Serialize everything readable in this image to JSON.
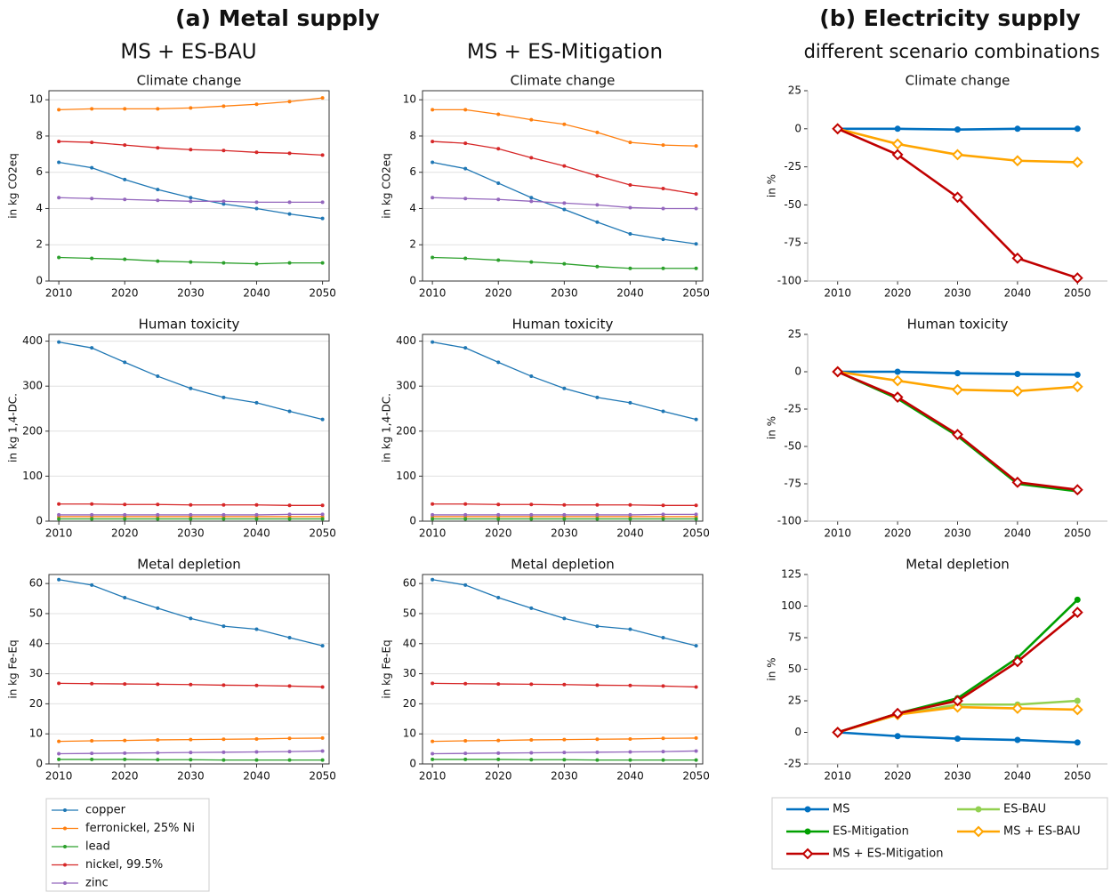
{
  "headings": {
    "a": "(a) Metal supply",
    "b": "(b) Electricity supply",
    "a1": "MS + ES-BAU",
    "a2": "MS + ES-Mitigation",
    "b1": "different scenario combinations"
  },
  "chart_data": [
    {
      "type": "line",
      "title": "Climate change",
      "y_label": "in kg CO2eq",
      "grid": true,
      "x": [
        2010,
        2015,
        2020,
        2025,
        2030,
        2035,
        2040,
        2045,
        2050
      ],
      "xlim": [
        2008.5,
        2051
      ],
      "xticks": [
        2010,
        2020,
        2030,
        2040,
        2050
      ],
      "ylim": [
        0,
        10.5
      ],
      "yticks": [
        0,
        2,
        4,
        6,
        8,
        10
      ],
      "series": [
        {
          "name": "copper",
          "color": "#1f77b4",
          "marker": "dot",
          "values": [
            6.55,
            6.25,
            5.6,
            5.05,
            4.6,
            4.25,
            4.0,
            3.7,
            3.45
          ]
        },
        {
          "name": "ferronickel, 25% Ni",
          "color": "#ff7f0e",
          "marker": "dot",
          "values": [
            9.45,
            9.5,
            9.5,
            9.5,
            9.55,
            9.65,
            9.75,
            9.9,
            10.1
          ]
        },
        {
          "name": "lead",
          "color": "#2ca02c",
          "marker": "dot",
          "values": [
            1.3,
            1.25,
            1.2,
            1.1,
            1.05,
            1.0,
            0.95,
            1.0,
            1.0
          ]
        },
        {
          "name": "nickel, 99.5%",
          "color": "#d62728",
          "marker": "dot",
          "values": [
            7.7,
            7.65,
            7.5,
            7.35,
            7.25,
            7.2,
            7.1,
            7.05,
            6.95
          ]
        },
        {
          "name": "zinc",
          "color": "#9467bd",
          "marker": "dot",
          "values": [
            4.6,
            4.55,
            4.5,
            4.45,
            4.4,
            4.4,
            4.35,
            4.35,
            4.35
          ]
        }
      ]
    },
    {
      "type": "line",
      "title": "Climate change",
      "y_label": "in kg CO2eq",
      "grid": true,
      "x": [
        2010,
        2015,
        2020,
        2025,
        2030,
        2035,
        2040,
        2045,
        2050
      ],
      "xlim": [
        2008.5,
        2051
      ],
      "xticks": [
        2010,
        2020,
        2030,
        2040,
        2050
      ],
      "ylim": [
        0,
        10.5
      ],
      "yticks": [
        0,
        2,
        4,
        6,
        8,
        10
      ],
      "series": [
        {
          "name": "copper",
          "color": "#1f77b4",
          "marker": "dot",
          "values": [
            6.55,
            6.2,
            5.4,
            4.6,
            3.95,
            3.25,
            2.6,
            2.3,
            2.05
          ]
        },
        {
          "name": "ferronickel, 25% Ni",
          "color": "#ff7f0e",
          "marker": "dot",
          "values": [
            9.45,
            9.45,
            9.2,
            8.9,
            8.65,
            8.2,
            7.65,
            7.5,
            7.45
          ]
        },
        {
          "name": "lead",
          "color": "#2ca02c",
          "marker": "dot",
          "values": [
            1.3,
            1.25,
            1.15,
            1.05,
            0.95,
            0.8,
            0.7,
            0.7,
            0.7
          ]
        },
        {
          "name": "nickel, 99.5%",
          "color": "#d62728",
          "marker": "dot",
          "values": [
            7.7,
            7.6,
            7.3,
            6.8,
            6.35,
            5.8,
            5.3,
            5.1,
            4.8
          ]
        },
        {
          "name": "zinc",
          "color": "#9467bd",
          "marker": "dot",
          "values": [
            4.6,
            4.55,
            4.5,
            4.4,
            4.3,
            4.2,
            4.05,
            4.0,
            4.0
          ]
        }
      ]
    },
    {
      "type": "line",
      "title": "Climate change",
      "y_label": "in %",
      "grid": false,
      "x": [
        2010,
        2020,
        2030,
        2040,
        2050
      ],
      "xlim": [
        2005,
        2055
      ],
      "xticks": [
        2010,
        2020,
        2030,
        2040,
        2050
      ],
      "ylim": [
        -100,
        25
      ],
      "yticks": [
        -100,
        -75,
        -50,
        -25,
        0,
        25
      ],
      "series": [
        {
          "name": "MS",
          "color": "#0070c0",
          "marker": "circle",
          "values": [
            0,
            0,
            -0.5,
            0,
            0
          ]
        },
        {
          "name": "MS + ES-BAU",
          "color": "#ffa500",
          "marker": "diamond",
          "values": [
            0,
            -10,
            -17,
            -21,
            -22
          ]
        },
        {
          "name": "MS + ES-Mitigation",
          "color": "#c00000",
          "marker": "diamond",
          "values": [
            0,
            -17,
            -45,
            -85,
            -98
          ]
        }
      ]
    },
    {
      "type": "line",
      "title": "Human toxicity",
      "y_label": "in kg 1,4-DC.",
      "grid": true,
      "x": [
        2010,
        2015,
        2020,
        2025,
        2030,
        2035,
        2040,
        2045,
        2050
      ],
      "xlim": [
        2008.5,
        2051
      ],
      "xticks": [
        2010,
        2020,
        2030,
        2040,
        2050
      ],
      "ylim": [
        0,
        415
      ],
      "yticks": [
        0,
        100,
        200,
        300,
        400
      ],
      "series": [
        {
          "name": "copper",
          "color": "#1f77b4",
          "marker": "dot",
          "values": [
            398,
            385,
            353,
            322,
            295,
            275,
            263,
            244,
            226
          ]
        },
        {
          "name": "ferronickel, 25% Ni",
          "color": "#ff7f0e",
          "marker": "dot",
          "values": [
            10,
            10,
            10,
            10,
            10,
            10,
            10,
            10,
            10
          ]
        },
        {
          "name": "lead",
          "color": "#2ca02c",
          "marker": "dot",
          "values": [
            5,
            5,
            5,
            5,
            5,
            5,
            5,
            5,
            5
          ]
        },
        {
          "name": "nickel, 99.5%",
          "color": "#d62728",
          "marker": "dot",
          "values": [
            38,
            38,
            37,
            37,
            36,
            36,
            36,
            35,
            35
          ]
        },
        {
          "name": "zinc",
          "color": "#9467bd",
          "marker": "dot",
          "values": [
            14,
            14,
            14,
            14,
            14,
            14,
            14,
            15,
            15
          ]
        }
      ]
    },
    {
      "type": "line",
      "title": "Human toxicity",
      "y_label": "in kg 1,4-DC.",
      "grid": true,
      "x": [
        2010,
        2015,
        2020,
        2025,
        2030,
        2035,
        2040,
        2045,
        2050
      ],
      "xlim": [
        2008.5,
        2051
      ],
      "xticks": [
        2010,
        2020,
        2030,
        2040,
        2050
      ],
      "ylim": [
        0,
        415
      ],
      "yticks": [
        0,
        100,
        200,
        300,
        400
      ],
      "series": [
        {
          "name": "copper",
          "color": "#1f77b4",
          "marker": "dot",
          "values": [
            398,
            385,
            353,
            322,
            295,
            275,
            263,
            244,
            226
          ]
        },
        {
          "name": "ferronickel, 25% Ni",
          "color": "#ff7f0e",
          "marker": "dot",
          "values": [
            10,
            10,
            10,
            10,
            10,
            10,
            10,
            10,
            10
          ]
        },
        {
          "name": "lead",
          "color": "#2ca02c",
          "marker": "dot",
          "values": [
            5,
            5,
            5,
            5,
            5,
            5,
            5,
            5,
            5
          ]
        },
        {
          "name": "nickel, 99.5%",
          "color": "#d62728",
          "marker": "dot",
          "values": [
            38,
            38,
            37,
            37,
            36,
            36,
            36,
            35,
            35
          ]
        },
        {
          "name": "zinc",
          "color": "#9467bd",
          "marker": "dot",
          "values": [
            14,
            14,
            14,
            14,
            14,
            14,
            14,
            15,
            15
          ]
        }
      ]
    },
    {
      "type": "line",
      "title": "Human toxicity",
      "y_label": "in %",
      "grid": false,
      "x": [
        2010,
        2020,
        2030,
        2040,
        2050
      ],
      "xlim": [
        2005,
        2055
      ],
      "xticks": [
        2010,
        2020,
        2030,
        2040,
        2050
      ],
      "ylim": [
        -100,
        25
      ],
      "yticks": [
        -100,
        -75,
        -50,
        -25,
        0,
        25
      ],
      "series": [
        {
          "name": "MS",
          "color": "#0070c0",
          "marker": "circle",
          "values": [
            0,
            0,
            -1,
            -1.5,
            -2
          ]
        },
        {
          "name": "MS + ES-BAU",
          "color": "#ffa500",
          "marker": "diamond",
          "values": [
            0,
            -6,
            -12,
            -13,
            -10
          ]
        },
        {
          "name": "ES-Mitigation",
          "color": "#00a000",
          "marker": "circle",
          "values": [
            0,
            -18,
            -43,
            -75,
            -80
          ]
        },
        {
          "name": "MS + ES-Mitigation",
          "color": "#c00000",
          "marker": "diamond",
          "values": [
            0,
            -17,
            -42,
            -74,
            -79
          ]
        }
      ]
    },
    {
      "type": "line",
      "title": "Metal depletion",
      "y_label": "in kg Fe-Eq",
      "grid": true,
      "x": [
        2010,
        2015,
        2020,
        2025,
        2030,
        2035,
        2040,
        2045,
        2050
      ],
      "xlim": [
        2008.5,
        2051
      ],
      "xticks": [
        2010,
        2020,
        2030,
        2040,
        2050
      ],
      "ylim": [
        0,
        63
      ],
      "yticks": [
        0,
        10,
        20,
        30,
        40,
        50,
        60
      ],
      "series": [
        {
          "name": "copper",
          "color": "#1f77b4",
          "marker": "dot",
          "values": [
            61.3,
            59.5,
            55.3,
            51.8,
            48.4,
            45.8,
            44.8,
            42.0,
            39.3
          ]
        },
        {
          "name": "ferronickel, 25% Ni",
          "color": "#ff7f0e",
          "marker": "dot",
          "values": [
            7.5,
            7.7,
            7.8,
            8.0,
            8.1,
            8.2,
            8.3,
            8.5,
            8.6
          ]
        },
        {
          "name": "lead",
          "color": "#2ca02c",
          "marker": "dot",
          "values": [
            1.5,
            1.5,
            1.5,
            1.4,
            1.4,
            1.3,
            1.3,
            1.3,
            1.3
          ]
        },
        {
          "name": "nickel, 99.5%",
          "color": "#d62728",
          "marker": "dot",
          "values": [
            26.8,
            26.7,
            26.6,
            26.5,
            26.4,
            26.2,
            26.1,
            25.9,
            25.6
          ]
        },
        {
          "name": "zinc",
          "color": "#9467bd",
          "marker": "dot",
          "values": [
            3.4,
            3.5,
            3.6,
            3.7,
            3.8,
            3.9,
            4.0,
            4.1,
            4.3
          ]
        }
      ]
    },
    {
      "type": "line",
      "title": "Metal depletion",
      "y_label": "in kg Fe-Eq",
      "grid": true,
      "x": [
        2010,
        2015,
        2020,
        2025,
        2030,
        2035,
        2040,
        2045,
        2050
      ],
      "xlim": [
        2008.5,
        2051
      ],
      "xticks": [
        2010,
        2020,
        2030,
        2040,
        2050
      ],
      "ylim": [
        0,
        63
      ],
      "yticks": [
        0,
        10,
        20,
        30,
        40,
        50,
        60
      ],
      "series": [
        {
          "name": "copper",
          "color": "#1f77b4",
          "marker": "dot",
          "values": [
            61.3,
            59.5,
            55.3,
            51.8,
            48.4,
            45.8,
            44.8,
            42.0,
            39.3
          ]
        },
        {
          "name": "ferronickel, 25% Ni",
          "color": "#ff7f0e",
          "marker": "dot",
          "values": [
            7.5,
            7.7,
            7.8,
            8.0,
            8.1,
            8.2,
            8.3,
            8.5,
            8.6
          ]
        },
        {
          "name": "lead",
          "color": "#2ca02c",
          "marker": "dot",
          "values": [
            1.5,
            1.5,
            1.5,
            1.4,
            1.4,
            1.3,
            1.3,
            1.3,
            1.3
          ]
        },
        {
          "name": "nickel, 99.5%",
          "color": "#d62728",
          "marker": "dot",
          "values": [
            26.8,
            26.7,
            26.6,
            26.5,
            26.4,
            26.2,
            26.1,
            25.9,
            25.6
          ]
        },
        {
          "name": "zinc",
          "color": "#9467bd",
          "marker": "dot",
          "values": [
            3.4,
            3.5,
            3.6,
            3.7,
            3.8,
            3.9,
            4.0,
            4.1,
            4.3
          ]
        }
      ]
    },
    {
      "type": "line",
      "title": "Metal depletion",
      "y_label": "in %",
      "grid": false,
      "x": [
        2010,
        2020,
        2030,
        2040,
        2050
      ],
      "xlim": [
        2005,
        2055
      ],
      "xticks": [
        2010,
        2020,
        2030,
        2040,
        2050
      ],
      "ylim": [
        -25,
        125
      ],
      "yticks": [
        -25,
        0,
        25,
        50,
        75,
        100,
        125
      ],
      "series": [
        {
          "name": "MS",
          "color": "#0070c0",
          "marker": "circle",
          "values": [
            0,
            -3,
            -5,
            -6,
            -8
          ]
        },
        {
          "name": "ES-BAU",
          "color": "#92d050",
          "marker": "circle",
          "values": [
            0,
            14,
            22,
            22,
            25
          ]
        },
        {
          "name": "ES-Mitigation",
          "color": "#00a000",
          "marker": "circle",
          "values": [
            0,
            15,
            27,
            59,
            105
          ]
        },
        {
          "name": "MS + ES-BAU",
          "color": "#ffa500",
          "marker": "diamond",
          "values": [
            0,
            14,
            20,
            19,
            18
          ]
        },
        {
          "name": "MS + ES-Mitigation",
          "color": "#c00000",
          "marker": "diamond",
          "values": [
            0,
            15,
            25,
            56,
            95
          ]
        }
      ]
    }
  ]
}
